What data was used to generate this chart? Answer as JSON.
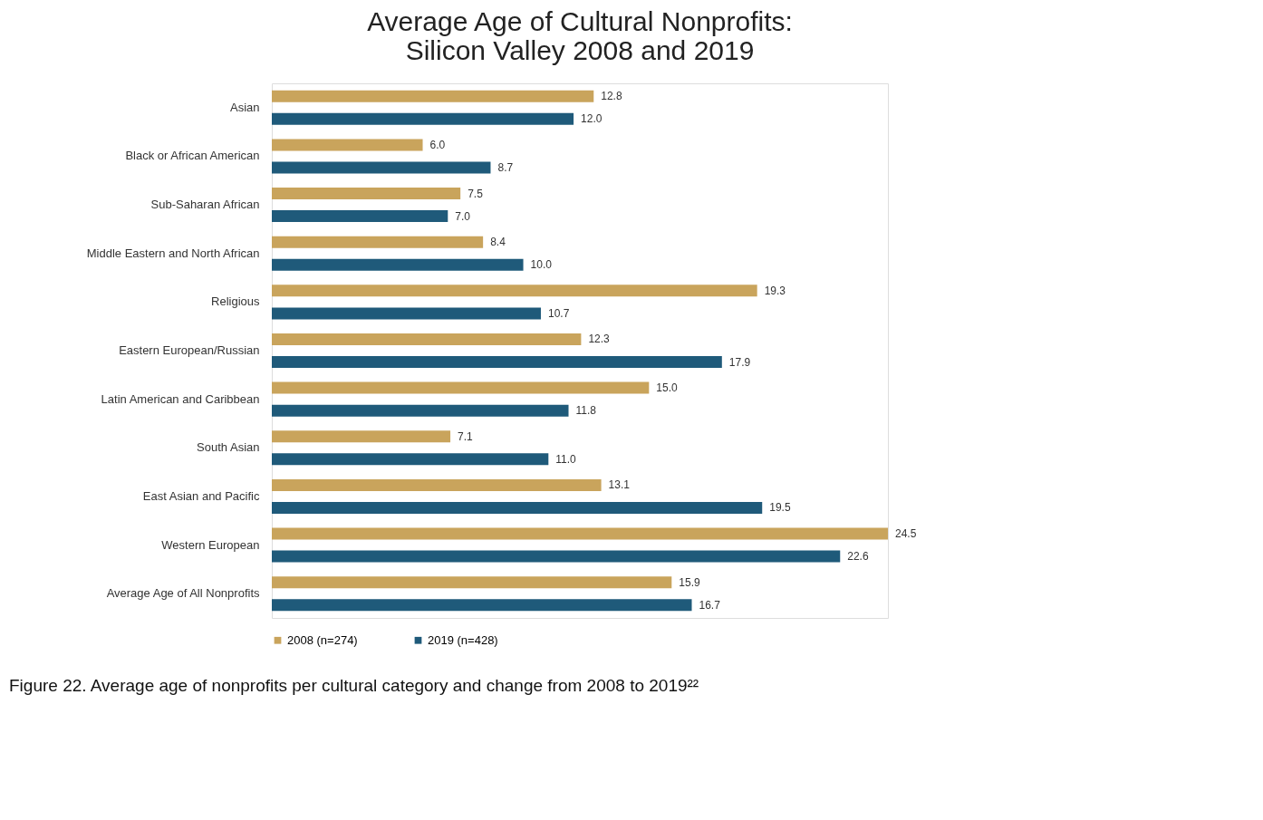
{
  "chart_data": {
    "type": "bar",
    "orientation": "horizontal",
    "title": "Average Age of Cultural Nonprofits:\nSilicon Valley 2008 and 2019",
    "categories": [
      "Asian",
      "Black or African American",
      "Sub-Saharan African",
      "Middle Eastern and North African",
      "Religious",
      "Eastern European/Russian",
      "Latin American and Caribbean",
      "South Asian",
      "East Asian and Pacific",
      "Western European",
      "Average Age of All Nonprofits"
    ],
    "series": [
      {
        "name": "2008 (n=274)",
        "color": "#c9a45c",
        "values": [
          12.8,
          6.0,
          7.5,
          8.4,
          19.3,
          12.3,
          15.0,
          7.1,
          13.1,
          24.5,
          15.9
        ],
        "value_labels": [
          "12.8",
          "6.0",
          "7.5",
          "8.4",
          "19.3",
          "12.3",
          "15.0",
          "7.1",
          "13.1",
          "24.5",
          "15.9"
        ]
      },
      {
        "name": "2019 (n=428)",
        "color": "#1f5a7a",
        "values": [
          12.0,
          8.7,
          7.0,
          10.0,
          10.7,
          17.9,
          11.8,
          11.0,
          19.5,
          22.6,
          16.7
        ],
        "value_labels": [
          "12.0",
          "8.7",
          "7.0",
          "10.0",
          "10.7",
          "17.9",
          "11.8",
          "11.0",
          "19.5",
          "22.6",
          "16.7"
        ]
      }
    ],
    "legend": "bottom",
    "annotations": [
      "Figure 22. Average age of nonprofits per cultural category and change from 2008 to 2019²²"
    ]
  }
}
